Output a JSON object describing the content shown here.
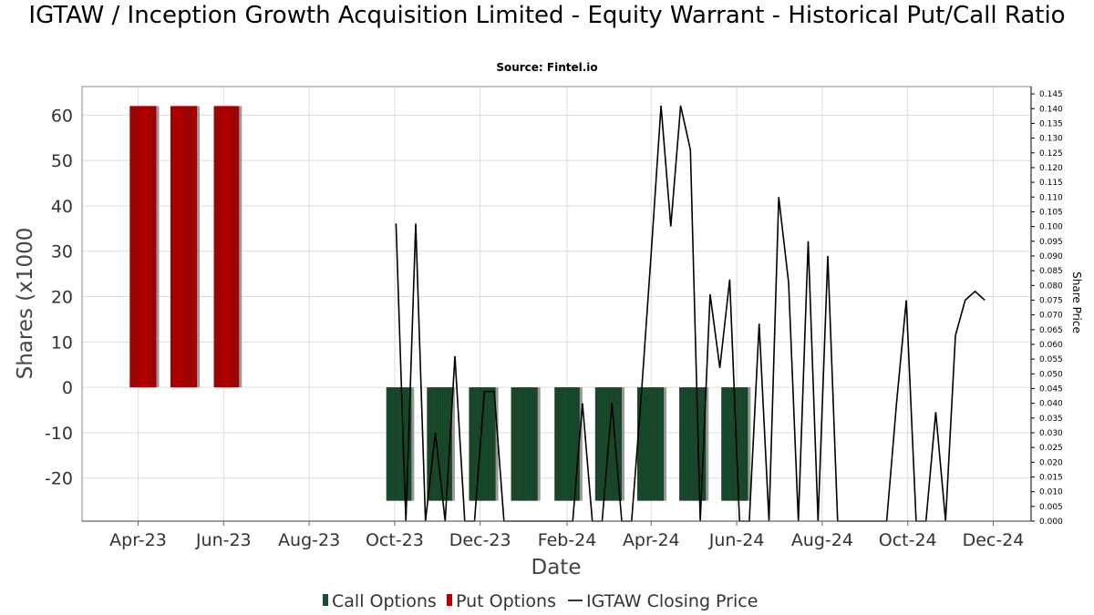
{
  "chart_data": {
    "type": "bar",
    "title": "IGTAW / Inception Growth Acquisition Limited - Equity Warrant - Historical Put/Call Ratio",
    "subtitle": "Source: Fintel.io",
    "xlabel": "Date",
    "ylabel": "Shares (x1000",
    "y2label": "Share Price",
    "x_ticks": [
      "Apr-23",
      "Jun-23",
      "Aug-23",
      "Oct-23",
      "Dec-23",
      "Feb-24",
      "Apr-24",
      "Jun-24",
      "Aug-24",
      "Oct-24",
      "Dec-24"
    ],
    "x_range": [
      "2023-02-20",
      "2024-12-28"
    ],
    "ylim": [
      -29.5,
      66.3
    ],
    "y_ticks": [
      -20,
      -10,
      0,
      10,
      20,
      30,
      40,
      50,
      60
    ],
    "y2lim": [
      0,
      0.1475
    ],
    "y2_ticks": [
      "0.000",
      "0.005",
      "0.010",
      "0.015",
      "0.020",
      "0.025",
      "0.030",
      "0.035",
      "0.040",
      "0.045",
      "0.050",
      "0.055",
      "0.060",
      "0.065",
      "0.070",
      "0.075",
      "0.080",
      "0.085",
      "0.090",
      "0.095",
      "0.100",
      "0.105",
      "0.110",
      "0.115",
      "0.120",
      "0.125",
      "0.130",
      "0.135",
      "0.140",
      "0.145"
    ],
    "grid": true,
    "legend_position": "bottom",
    "series": [
      {
        "name": "Call Options",
        "color": "#1a4d2e",
        "bars": [
          {
            "start": "2023-09-25",
            "end": "2023-10-13",
            "value": -25
          },
          {
            "start": "2023-10-24",
            "end": "2023-11-11",
            "value": -25
          },
          {
            "start": "2023-11-23",
            "end": "2023-12-12",
            "value": -25
          },
          {
            "start": "2023-12-23",
            "end": "2024-01-11",
            "value": -25
          },
          {
            "start": "2024-01-23",
            "end": "2024-02-10",
            "value": -25
          },
          {
            "start": "2024-02-21",
            "end": "2024-03-11",
            "value": -25
          },
          {
            "start": "2024-03-22",
            "end": "2024-04-10",
            "value": -25
          },
          {
            "start": "2024-04-21",
            "end": "2024-05-10",
            "value": -25
          },
          {
            "start": "2024-05-21",
            "end": "2024-06-09",
            "value": -25
          }
        ]
      },
      {
        "name": "Put Options",
        "color": "#b30000",
        "bars": [
          {
            "start": "2023-03-26",
            "end": "2023-04-14",
            "value": 62
          },
          {
            "start": "2023-04-24",
            "end": "2023-05-13",
            "value": 62
          },
          {
            "start": "2023-05-25",
            "end": "2023-06-12",
            "value": 62
          }
        ]
      },
      {
        "name": "IGTAW Closing Price",
        "color": "#000000",
        "axis": "right",
        "points": [
          [
            "2023-10-02",
            0.101
          ],
          [
            "2023-10-09",
            0.0
          ],
          [
            "2023-10-16",
            0.101
          ],
          [
            "2023-10-23",
            0.0
          ],
          [
            "2023-10-30",
            0.03
          ],
          [
            "2023-11-06",
            0.0
          ],
          [
            "2023-11-13",
            0.056
          ],
          [
            "2023-11-20",
            0.0
          ],
          [
            "2023-11-27",
            0.0
          ],
          [
            "2023-12-04",
            0.044
          ],
          [
            "2023-12-11",
            0.044
          ],
          [
            "2023-12-18",
            0.0
          ],
          [
            "2024-02-05",
            0.0
          ],
          [
            "2024-02-12",
            0.04
          ],
          [
            "2024-02-19",
            0.0
          ],
          [
            "2024-02-26",
            0.0
          ],
          [
            "2024-03-04",
            0.04
          ],
          [
            "2024-03-11",
            0.0
          ],
          [
            "2024-03-18",
            0.0
          ],
          [
            "2024-03-25",
            0.043
          ],
          [
            "2024-04-01",
            0.091
          ],
          [
            "2024-04-08",
            0.141
          ],
          [
            "2024-04-15",
            0.1
          ],
          [
            "2024-04-22",
            0.141
          ],
          [
            "2024-04-29",
            0.126
          ],
          [
            "2024-05-06",
            0.0
          ],
          [
            "2024-05-13",
            0.077
          ],
          [
            "2024-05-20",
            0.052
          ],
          [
            "2024-05-27",
            0.082
          ],
          [
            "2024-06-03",
            0.0
          ],
          [
            "2024-06-10",
            0.0
          ],
          [
            "2024-06-17",
            0.067
          ],
          [
            "2024-06-24",
            0.0
          ],
          [
            "2024-07-01",
            0.11
          ],
          [
            "2024-07-08",
            0.081
          ],
          [
            "2024-07-15",
            0.0
          ],
          [
            "2024-07-22",
            0.095
          ],
          [
            "2024-07-29",
            0.0
          ],
          [
            "2024-08-05",
            0.09
          ],
          [
            "2024-08-12",
            0.0
          ],
          [
            "2024-09-16",
            0.0
          ],
          [
            "2024-09-23",
            0.04
          ],
          [
            "2024-09-30",
            0.075
          ],
          [
            "2024-10-07",
            0.0
          ],
          [
            "2024-10-14",
            0.0
          ],
          [
            "2024-10-21",
            0.037
          ],
          [
            "2024-10-28",
            0.0
          ],
          [
            "2024-11-04",
            0.063
          ],
          [
            "2024-11-11",
            0.075
          ],
          [
            "2024-11-18",
            0.078
          ],
          [
            "2024-11-25",
            0.075
          ]
        ]
      }
    ]
  },
  "legend": {
    "items": [
      {
        "label": "Call Options",
        "color": "#1a4d2e",
        "kind": "square"
      },
      {
        "label": "Put Options",
        "color": "#b30000",
        "kind": "square"
      },
      {
        "label": "IGTAW Closing Price",
        "color": "#000000",
        "kind": "line"
      }
    ]
  }
}
